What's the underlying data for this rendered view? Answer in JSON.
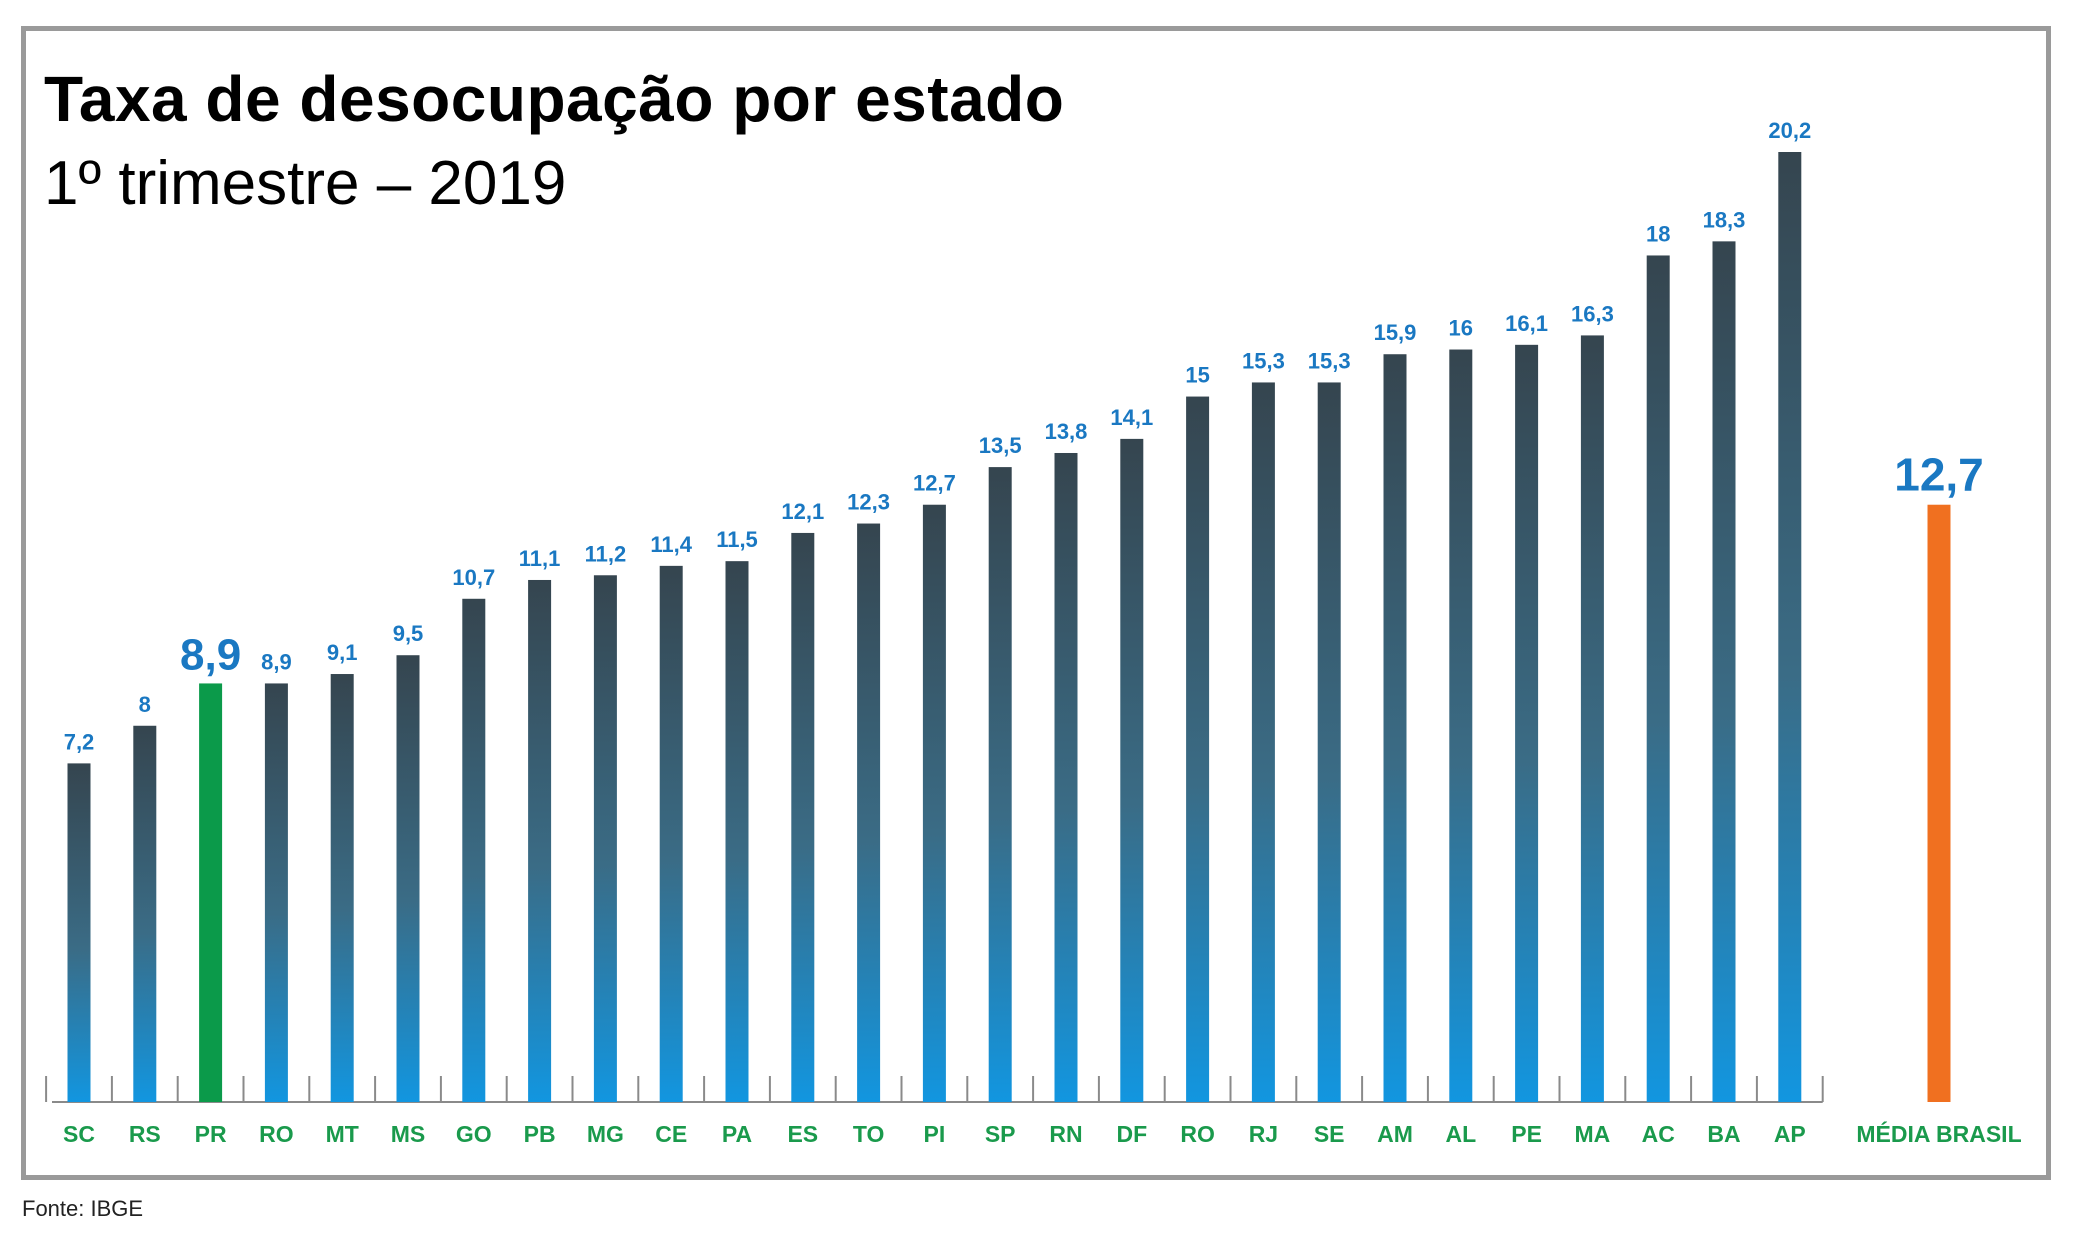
{
  "chart_data": {
    "type": "bar",
    "title": "Taxa de desocupação por estado",
    "subtitle": "1º trimestre – 2019",
    "categories": [
      "SC",
      "RS",
      "PR",
      "RO",
      "MT",
      "MS",
      "GO",
      "PB",
      "MG",
      "CE",
      "PA",
      "ES",
      "TO",
      "PI",
      "SP",
      "RN",
      "DF",
      "RO",
      "RJ",
      "SE",
      "AM",
      "AL",
      "PE",
      "MA",
      "AC",
      "BA",
      "AP"
    ],
    "values": [
      7.2,
      8,
      8.9,
      8.9,
      9.1,
      9.5,
      10.7,
      11.1,
      11.2,
      11.4,
      11.5,
      12.1,
      12.3,
      12.7,
      13.5,
      13.8,
      14.1,
      15,
      15.3,
      15.3,
      15.9,
      16,
      16.1,
      16.3,
      18,
      18.3,
      20.2
    ],
    "value_labels": [
      "7,2",
      "8",
      "8,9",
      "8,9",
      "9,1",
      "9,5",
      "10,7",
      "11,1",
      "11,2",
      "11,4",
      "11,5",
      "12,1",
      "12,3",
      "12,7",
      "13,5",
      "13,8",
      "14,1",
      "15",
      "15,3",
      "15,3",
      "15,9",
      "16",
      "16,1",
      "16,3",
      "18",
      "18,3",
      "20,2"
    ],
    "highlight": {
      "category": "PR",
      "value": 8.9,
      "label": "8,9",
      "color": "#0b9a4a"
    },
    "average": {
      "label": "MÉDIA BRASIL",
      "value": 12.7,
      "value_label": "12,7",
      "color": "#f07020"
    },
    "bar_gradient": {
      "top": "#35454f",
      "bottom": "#1296e0"
    },
    "label_colors": {
      "value": "#1a78c2",
      "category": "#1a9a4c"
    },
    "ylim": [
      0,
      20.2
    ],
    "legend": "none",
    "grid": false
  },
  "source": "Fonte: IBGE"
}
